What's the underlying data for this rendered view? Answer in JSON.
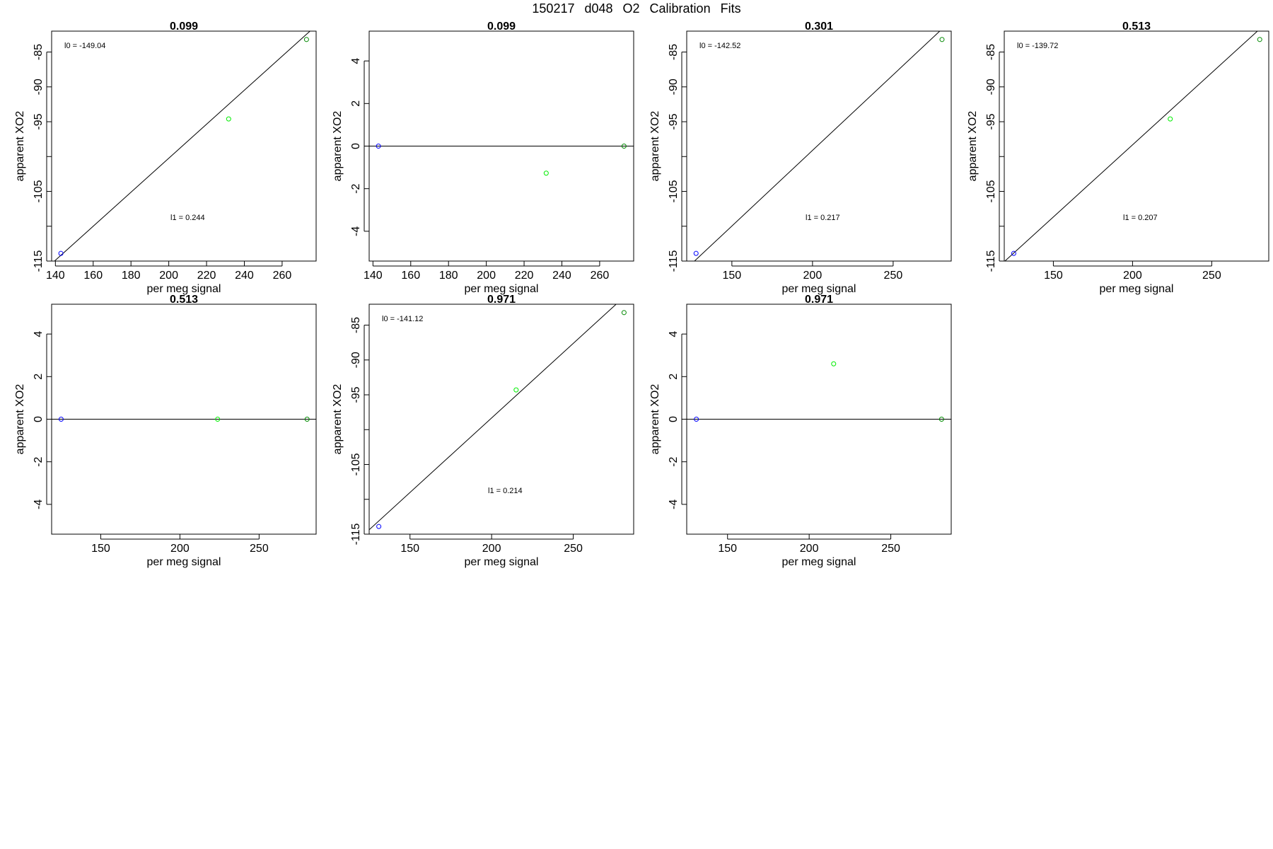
{
  "title": "150217   d048   O2 Calibration Fits",
  "colors": {
    "axis": "#000000",
    "fit_line": "#000000",
    "low_point": "#0000ff",
    "mid_point": "#00ee00",
    "high_point": "#008800"
  },
  "chart_data": [
    {
      "type": "scatter",
      "title": "0.099",
      "xlabel": "per meg signal",
      "ylabel": "apparent XO2",
      "xlim": [
        138,
        278
      ],
      "ylim": [
        -115,
        -82
      ],
      "xticks": [
        140,
        160,
        180,
        200,
        220,
        240,
        260
      ],
      "yticks": [
        -115,
        -110,
        -105,
        -100,
        -95,
        -90,
        -85
      ],
      "ytick_labels": [
        "-115",
        "",
        "-105",
        "",
        "-95",
        "-90",
        "-85"
      ],
      "points": [
        {
          "x": 142.9,
          "y": -113.9,
          "color": "#0000ff"
        },
        {
          "x": 231.7,
          "y": -94.6,
          "color": "#00ee00"
        },
        {
          "x": 272.9,
          "y": -83.2,
          "color": "#008800"
        }
      ],
      "fit": {
        "intercept": -149.04,
        "slope": 0.244
      },
      "annotations": {
        "l0": "l0 =  -149.04",
        "l1": "l1 =  0.244"
      }
    },
    {
      "type": "scatter",
      "title": "0.099",
      "xlabel": "per meg signal",
      "ylabel": "apparent XO2",
      "xlim": [
        138,
        278
      ],
      "ylim": [
        -5.4,
        5.4
      ],
      "xticks": [
        140,
        160,
        180,
        200,
        220,
        240,
        260
      ],
      "yticks": [
        -4,
        -2,
        0,
        2,
        4
      ],
      "ytick_labels": [
        "-4",
        "-2",
        "0",
        "2",
        "4"
      ],
      "points": [
        {
          "x": 142.9,
          "y": 0,
          "color": "#0000ff"
        },
        {
          "x": 231.7,
          "y": -1.27,
          "color": "#00ee00"
        },
        {
          "x": 272.9,
          "y": 0,
          "color": "#008800"
        }
      ],
      "fit": {
        "intercept": 0,
        "slope": 0
      },
      "annotations": null
    },
    {
      "type": "scatter",
      "title": "0.301",
      "xlabel": "per meg signal",
      "ylabel": "apparent XO2",
      "xlim": [
        122,
        286
      ],
      "ylim": [
        -115,
        -82
      ],
      "xticks": [
        150,
        200,
        250
      ],
      "yticks": [
        -115,
        -110,
        -105,
        -100,
        -95,
        -90,
        -85
      ],
      "ytick_labels": [
        "-115",
        "",
        "-105",
        "",
        "-95",
        "-90",
        "-85"
      ],
      "points": [
        {
          "x": 127.8,
          "y": -113.9,
          "color": "#0000ff"
        },
        {
          "x": 280.3,
          "y": -83.2,
          "color": "#008800"
        }
      ],
      "fit": {
        "intercept": -142.52,
        "slope": 0.217
      },
      "annotations": {
        "l0": "l0 =  -142.52",
        "l1": "l1 =  0.217"
      }
    },
    {
      "type": "scatter",
      "title": "0.513",
      "xlabel": "per meg signal",
      "ylabel": "apparent XO2",
      "xlim": [
        119,
        286
      ],
      "ylim": [
        -115,
        -82
      ],
      "xticks": [
        150,
        200,
        250
      ],
      "yticks": [
        -115,
        -110,
        -105,
        -100,
        -95,
        -90,
        -85
      ],
      "ytick_labels": [
        "-115",
        "",
        "-105",
        "",
        "-95",
        "-90",
        "-85"
      ],
      "points": [
        {
          "x": 125.0,
          "y": -113.9,
          "color": "#0000ff"
        },
        {
          "x": 223.8,
          "y": -94.6,
          "color": "#00ee00"
        },
        {
          "x": 280.3,
          "y": -83.2,
          "color": "#008800"
        }
      ],
      "fit": {
        "intercept": -139.72,
        "slope": 0.207
      },
      "annotations": {
        "l0": "l0 =  -139.72",
        "l1": "l1 =  0.207"
      }
    },
    {
      "type": "scatter",
      "title": "0.513",
      "xlabel": "per meg signal",
      "ylabel": "apparent XO2",
      "xlim": [
        119,
        286
      ],
      "ylim": [
        -5.4,
        5.4
      ],
      "xticks": [
        150,
        200,
        250
      ],
      "yticks": [
        -4,
        -2,
        0,
        2,
        4
      ],
      "ytick_labels": [
        "-4",
        "-2",
        "0",
        "2",
        "4"
      ],
      "points": [
        {
          "x": 125.0,
          "y": 0,
          "color": "#0000ff"
        },
        {
          "x": 223.8,
          "y": 0,
          "color": "#00ee00"
        },
        {
          "x": 280.3,
          "y": 0,
          "color": "#008800"
        }
      ],
      "fit": {
        "intercept": 0,
        "slope": 0
      },
      "annotations": null
    },
    {
      "type": "scatter",
      "title": "0.971",
      "xlabel": "per meg signal",
      "ylabel": "apparent XO2",
      "xlim": [
        125,
        287
      ],
      "ylim": [
        -115,
        -82
      ],
      "xticks": [
        150,
        200,
        250
      ],
      "yticks": [
        -115,
        -110,
        -105,
        -100,
        -95,
        -90,
        -85
      ],
      "ytick_labels": [
        "-115",
        "",
        "-105",
        "",
        "-95",
        "-90",
        "-85"
      ],
      "points": [
        {
          "x": 130.9,
          "y": -113.9,
          "color": "#0000ff"
        },
        {
          "x": 215.0,
          "y": -94.3,
          "color": "#00ee00"
        },
        {
          "x": 281.1,
          "y": -83.2,
          "color": "#008800"
        }
      ],
      "fit": {
        "intercept": -141.12,
        "slope": 0.214
      },
      "annotations": {
        "l0": "l0 =  -141.12",
        "l1": "l1 =  0.214"
      }
    },
    {
      "type": "scatter",
      "title": "0.971",
      "xlabel": "per meg signal",
      "ylabel": "apparent XO2",
      "xlim": [
        125,
        287
      ],
      "ylim": [
        -5.4,
        5.4
      ],
      "xticks": [
        150,
        200,
        250
      ],
      "yticks": [
        -4,
        -2,
        0,
        2,
        4
      ],
      "ytick_labels": [
        "-4",
        "-2",
        "0",
        "2",
        "4"
      ],
      "points": [
        {
          "x": 130.9,
          "y": 0,
          "color": "#0000ff"
        },
        {
          "x": 215.0,
          "y": 2.6,
          "color": "#00ee00"
        },
        {
          "x": 281.1,
          "y": 0,
          "color": "#008800"
        }
      ],
      "fit": {
        "intercept": 0,
        "slope": 0
      },
      "annotations": null
    }
  ]
}
